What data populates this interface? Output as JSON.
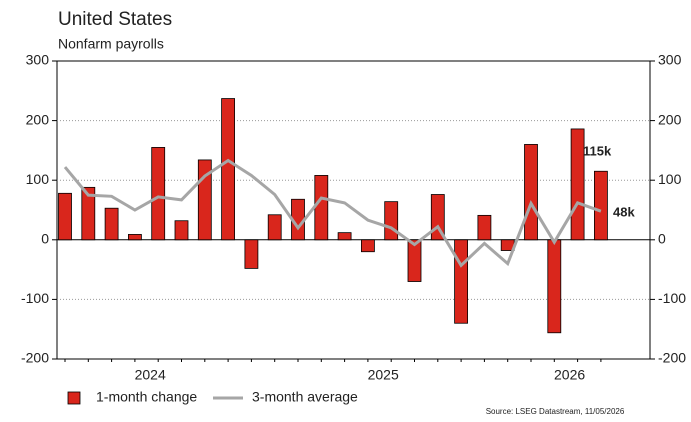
{
  "chart_data": {
    "type": "bar",
    "title": "United States",
    "subtitle": "Nonfarm payrolls",
    "categories": [
      null,
      null,
      null,
      null,
      "2024",
      null,
      null,
      null,
      null,
      null,
      null,
      null,
      null,
      null,
      "2025",
      null,
      null,
      null,
      null,
      null,
      null,
      null,
      "2026",
      null
    ],
    "series": [
      {
        "name": "1-month change",
        "type": "bar",
        "color": "#d9261c",
        "values": [
          78,
          88,
          53,
          9,
          155,
          32,
          134,
          237,
          -48,
          42,
          68,
          108,
          12,
          -20,
          64,
          -70,
          76,
          -140,
          41,
          -18,
          160,
          -156,
          186,
          115
        ]
      },
      {
        "name": "3-month average",
        "type": "line",
        "color": "#a6a6a6",
        "values": [
          122,
          75,
          73,
          50,
          72,
          67,
          107,
          133,
          108,
          76,
          20,
          70,
          62,
          33,
          20,
          -8,
          22,
          -43,
          -6,
          -40,
          61,
          -4,
          62,
          48
        ]
      }
    ],
    "annotations": [
      "115k",
      "48k"
    ],
    "source": "Source: LSEG Datastream, 11/05/2026",
    "ylim": [
      -200,
      300
    ],
    "yticks": [
      -200,
      -100,
      0,
      100,
      200,
      300
    ],
    "grid": true
  }
}
